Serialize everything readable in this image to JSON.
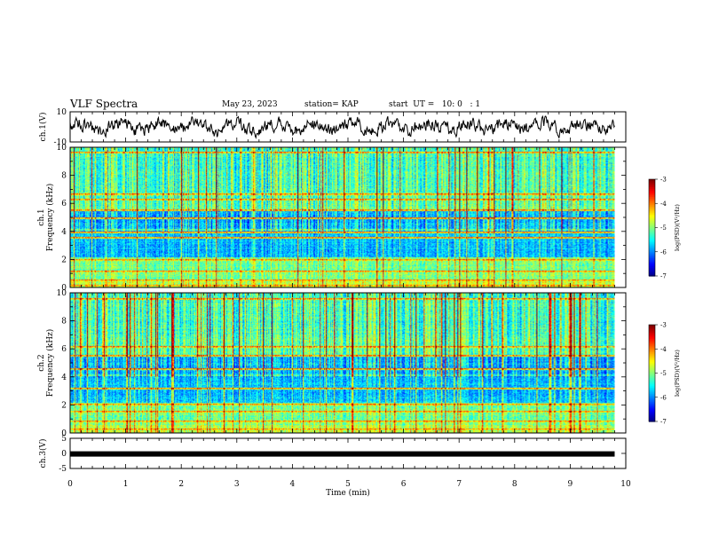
{
  "header": {
    "title": "VLF Spectra",
    "date": "May 23, 2023",
    "station": "station= KAP",
    "start": "start  UT =   10: 0   : 1"
  },
  "chart_data": [
    {
      "type": "line",
      "name": "ch1-waveform",
      "ylabel": "ch.1(V)",
      "ylim": [
        -10,
        10
      ],
      "yticks": [
        "10",
        "-10"
      ],
      "xlim": [
        0,
        10
      ],
      "note_points": "noisy oscillating waveform, roughly between -8 and 8 V for 0–9.8 min"
    },
    {
      "type": "heatmap",
      "name": "ch1-spectrogram",
      "ylabel": "ch.1  Frequency (kHz)",
      "ylim": [
        0,
        10
      ],
      "yticks": [
        "0",
        "2",
        "4",
        "6",
        "8",
        "10"
      ],
      "xlim": [
        0,
        9.8
      ],
      "colorbar": {
        "label": "log(PSD)(V²/Hz)",
        "range": [
          -7,
          -3
        ],
        "ticks": [
          "-3",
          "-4",
          "-5",
          "-6",
          "-7"
        ]
      }
    },
    {
      "type": "heatmap",
      "name": "ch2-spectrogram",
      "ylabel": "ch.2  Frequency (kHz)",
      "ylim": [
        0,
        10
      ],
      "yticks": [
        "0",
        "2",
        "4",
        "6",
        "8",
        "10"
      ],
      "xlim": [
        0,
        9.8
      ],
      "colorbar": {
        "label": "log(PSD)(V²/Hz)",
        "range": [
          -7,
          -3
        ],
        "ticks": [
          "-3",
          "-4",
          "-5",
          "-6",
          "-7"
        ]
      }
    },
    {
      "type": "line",
      "name": "ch3-signal",
      "ylabel": "ch.3(V)",
      "ylim": [
        -5,
        5
      ],
      "yticks": [
        "5",
        "0",
        "-5"
      ],
      "x": [
        0,
        9.8
      ],
      "y": [
        -0.2,
        -0.2
      ]
    }
  ],
  "xaxis": {
    "label": "Time  (min)",
    "ticks": [
      "0",
      "1",
      "2",
      "3",
      "4",
      "5",
      "6",
      "7",
      "8",
      "9",
      "10"
    ],
    "range": [
      0,
      10
    ]
  },
  "colors": {
    "axis": "#000000"
  }
}
